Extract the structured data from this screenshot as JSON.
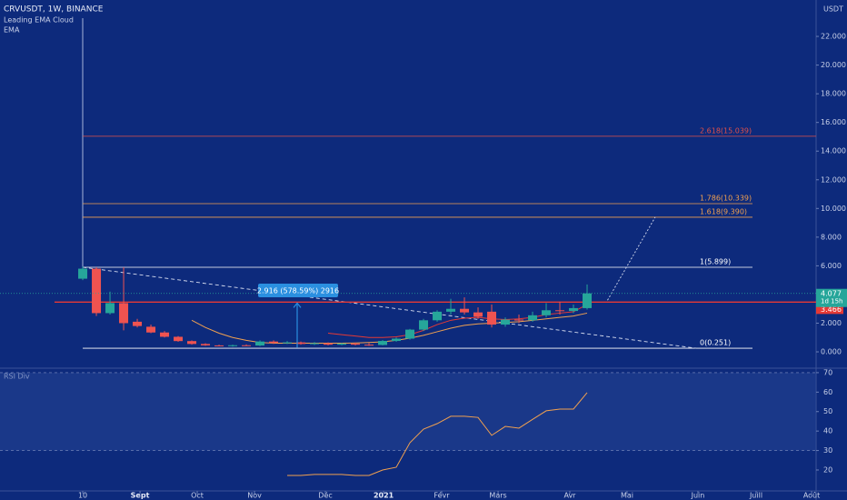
{
  "chart_data": {
    "type": "candlestick",
    "title": "CRVUSDT, 1W, BINANCE",
    "indicators": [
      "Leading EMA Cloud",
      "EMA"
    ],
    "currency": "USDT",
    "x": [
      0,
      1,
      2,
      3,
      4,
      5,
      6,
      7,
      8,
      9,
      10,
      11,
      12,
      13,
      14,
      15,
      16,
      17,
      18,
      19,
      20,
      21,
      22,
      23,
      24,
      25,
      26,
      27,
      28,
      29,
      30,
      31,
      32,
      33,
      34,
      35,
      36,
      37
    ],
    "open": [
      5.1,
      5.8,
      2.7,
      3.4,
      2.1,
      1.75,
      1.35,
      1.05,
      0.75,
      0.55,
      0.45,
      0.42,
      0.46,
      0.44,
      0.72,
      0.62,
      0.66,
      0.55,
      0.6,
      0.5,
      0.58,
      0.5,
      0.48,
      0.76,
      0.92,
      1.55,
      2.2,
      2.8,
      3.0,
      2.75,
      2.8,
      1.9,
      2.25,
      2.2,
      2.55,
      2.9,
      2.85,
      3.05
    ],
    "high": [
      5.95,
      5.9,
      4.2,
      5.9,
      2.3,
      1.9,
      1.45,
      1.1,
      0.8,
      0.6,
      0.5,
      0.5,
      0.52,
      0.8,
      0.8,
      0.75,
      0.72,
      0.68,
      0.66,
      0.62,
      0.64,
      0.62,
      0.82,
      1.0,
      1.6,
      2.3,
      2.9,
      3.7,
      3.8,
      3.1,
      3.3,
      2.4,
      2.6,
      2.8,
      3.4,
      3.5,
      3.3,
      4.7
    ],
    "low": [
      5.0,
      2.5,
      2.6,
      1.5,
      1.7,
      1.3,
      1.0,
      0.7,
      0.5,
      0.42,
      0.38,
      0.36,
      0.4,
      0.4,
      0.55,
      0.55,
      0.5,
      0.48,
      0.45,
      0.46,
      0.45,
      0.42,
      0.45,
      0.7,
      0.85,
      1.45,
      2.1,
      2.6,
      2.6,
      2.3,
      1.7,
      1.75,
      2.0,
      2.1,
      2.4,
      2.6,
      2.7,
      2.95
    ],
    "close": [
      5.8,
      2.7,
      3.4,
      2.0,
      1.8,
      1.35,
      1.05,
      0.75,
      0.55,
      0.45,
      0.42,
      0.46,
      0.44,
      0.72,
      0.62,
      0.66,
      0.55,
      0.6,
      0.5,
      0.58,
      0.5,
      0.48,
      0.76,
      0.92,
      1.55,
      2.2,
      2.8,
      3.0,
      2.75,
      2.45,
      1.9,
      2.25,
      2.2,
      2.55,
      2.9,
      2.85,
      3.05,
      4.077
    ],
    "up_color": "#26a69a",
    "down_color": "#ef5350",
    "ema": [
      {
        "color": "#f0a050",
        "x": [
          8,
          9,
          10,
          11,
          12,
          13,
          14,
          15,
          16,
          17,
          18,
          19,
          20,
          21,
          22,
          23,
          24,
          25,
          26,
          27,
          28,
          29,
          30,
          31,
          32,
          33,
          34,
          35,
          36,
          37
        ],
        "values": [
          2.2,
          1.7,
          1.3,
          1.0,
          0.8,
          0.65,
          0.6,
          0.6,
          0.6,
          0.6,
          0.6,
          0.6,
          0.62,
          0.65,
          0.7,
          0.8,
          0.95,
          1.15,
          1.4,
          1.65,
          1.85,
          1.95,
          2.0,
          2.05,
          2.1,
          2.2,
          2.3,
          2.4,
          2.5,
          2.7
        ]
      },
      {
        "color": "#e53935",
        "x": [
          18,
          19,
          20,
          21,
          22,
          23,
          24,
          25,
          26,
          27,
          28,
          29,
          30,
          31,
          32,
          33,
          34,
          35,
          36,
          37
        ],
        "values": [
          1.3,
          1.2,
          1.1,
          1.0,
          1.0,
          1.05,
          1.2,
          1.5,
          1.9,
          2.2,
          2.35,
          2.4,
          2.3,
          2.25,
          2.3,
          2.4,
          2.6,
          2.7,
          2.8,
          3.3
        ]
      }
    ],
    "levels": [
      {
        "label": "2.618(15.039)",
        "value": 15.039,
        "color": "#e0504a"
      },
      {
        "label": "1.786(10.339)",
        "value": 10.339,
        "color": "#f0a050"
      },
      {
        "label": "1.618(9.390)",
        "value": 9.39,
        "color": "#f0a050"
      },
      {
        "label": "1(5.899)",
        "value": 5.899,
        "color": "#ffffff"
      },
      {
        "label": "0(0.251)",
        "value": 0.251,
        "color": "#ffffff"
      }
    ],
    "trendline": {
      "x": [
        0,
        45
      ],
      "values": [
        5.9,
        0.25
      ]
    },
    "projection": {
      "x": [
        38.5,
        42
      ],
      "values": [
        3.6,
        9.4
      ]
    },
    "resistance": {
      "value": 3.466,
      "label": "3.466",
      "color": "#e53935"
    },
    "last_price": {
      "value": 4.077,
      "label": "4.077",
      "countdown": "1d 15h",
      "color": "#26a69a"
    },
    "measure": "2.916 (578.59%) 2916",
    "xlim": [
      -6.07,
      53.8
    ],
    "xticks": [
      {
        "value": 0,
        "label": "10"
      },
      {
        "value": 4.2,
        "label": "Sept"
      },
      {
        "value": 8.4,
        "label": "Oct"
      },
      {
        "value": 12.6,
        "label": "Nov"
      },
      {
        "value": 17.8,
        "label": "Déc"
      },
      {
        "value": 22.07,
        "label": "2021"
      },
      {
        "value": 26.33,
        "label": "Févr"
      },
      {
        "value": 30.47,
        "label": "Mars"
      },
      {
        "value": 35.73,
        "label": "Avr"
      },
      {
        "value": 39.93,
        "label": "Mai"
      },
      {
        "value": 45.13,
        "label": "Juin"
      },
      {
        "value": 49.4,
        "label": "Juill"
      },
      {
        "value": 53.47,
        "label": "Août"
      }
    ],
    "ylim": [
      -1.14,
      24.54
    ],
    "yticks": [
      {
        "value": 0,
        "label": "0.000"
      },
      {
        "value": 2,
        "label": "2.000"
      },
      {
        "value": 4,
        "label": "4.000"
      },
      {
        "value": 6,
        "label": "6.000"
      },
      {
        "value": 8,
        "label": "8.000"
      },
      {
        "value": 10,
        "label": "10.000"
      },
      {
        "value": 12,
        "label": "12.000"
      },
      {
        "value": 14,
        "label": "14.000"
      },
      {
        "value": 16,
        "label": "16.000"
      },
      {
        "value": 18,
        "label": "18.000"
      },
      {
        "value": 20,
        "label": "20.000"
      },
      {
        "value": 22,
        "label": "22.000"
      }
    ],
    "rsi": {
      "name": "RSI Div",
      "color": "#f0a050",
      "x": [
        15,
        16,
        17,
        18,
        19,
        20,
        21,
        22,
        23,
        24,
        25,
        26,
        27,
        28,
        29,
        30,
        31,
        32,
        33,
        34,
        35,
        36,
        37
      ],
      "values": [
        17.2,
        17.2,
        17.7,
        17.7,
        17.7,
        17.2,
        17.2,
        20,
        21.4,
        34,
        41,
        43.8,
        47.6,
        47.6,
        47,
        37.8,
        42.4,
        41.5,
        46,
        50.4,
        51.3,
        51.3,
        59.7
      ],
      "ylim": [
        9.25,
        72.3
      ],
      "yticks": [
        20,
        30,
        40,
        50,
        60,
        70
      ],
      "bands": [
        30,
        70
      ]
    }
  }
}
